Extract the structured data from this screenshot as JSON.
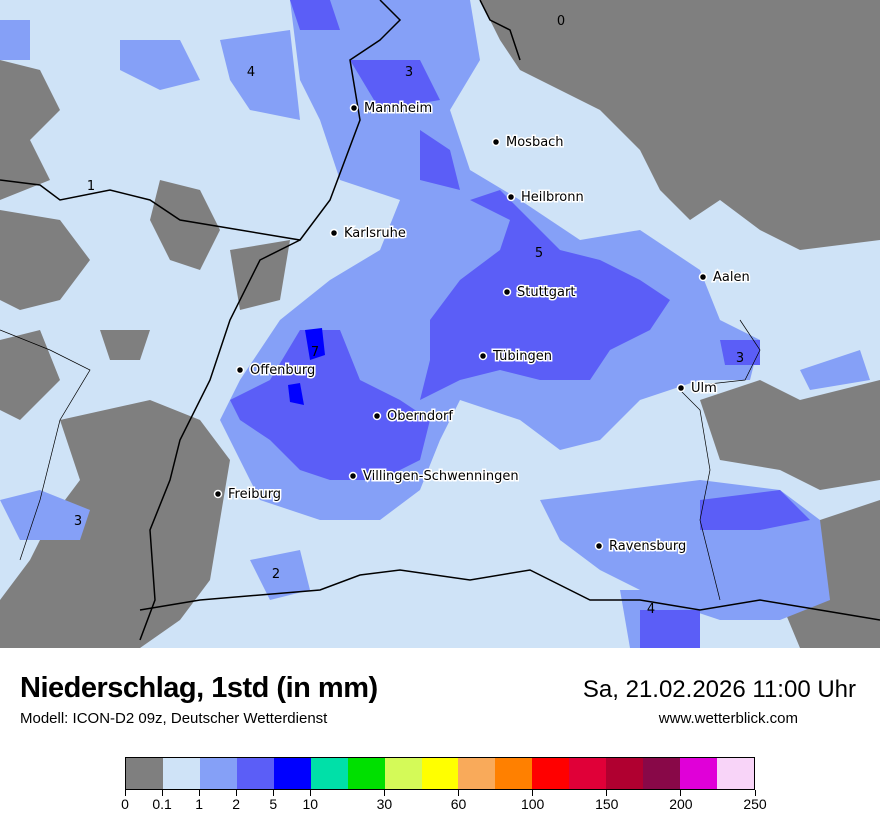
{
  "header": {
    "title": "Niederschlag, 1std (in mm)",
    "subtitle": "Modell: ICON-D2 09z, Deutscher Wetterdienst",
    "datetime": "Sa, 21.02.2026 11:00 Uhr",
    "website": "www.wetterblick.com"
  },
  "map": {
    "colors": {
      "no_precip": "#7f7f7f",
      "lt1": "#cfe3f7",
      "1to2": "#85a0f7",
      "2to5": "#5b5ef7",
      "5to10": "#0000ff"
    },
    "cities": [
      {
        "name": "Mannheim"
      },
      {
        "name": "Mosbach"
      },
      {
        "name": "Heilbronn"
      },
      {
        "name": "Karlsruhe"
      },
      {
        "name": "Aalen"
      },
      {
        "name": "Stuttgart"
      },
      {
        "name": "Tübingen"
      },
      {
        "name": "Ulm"
      },
      {
        "name": "Offenburg"
      },
      {
        "name": "Oberndorf"
      },
      {
        "name": "Villingen-Schwenningen"
      },
      {
        "name": "Freiburg"
      },
      {
        "name": "Ravensburg"
      }
    ],
    "contour_labels": [
      "0",
      "4",
      "3",
      "1",
      "5",
      "7",
      "3",
      "3",
      "2",
      "4"
    ]
  },
  "legend": {
    "colors": [
      "#7f7f7f",
      "#cfe3f7",
      "#85a0f7",
      "#5b5ef7",
      "#0000ff",
      "#00e0a8",
      "#00e000",
      "#d4fa58",
      "#ffff00",
      "#f9aa5a",
      "#ff8000",
      "#ff0000",
      "#e00038",
      "#b00030",
      "#880848",
      "#e000d8",
      "#f8d4f8"
    ],
    "ticks": [
      "0",
      "0.1",
      "1",
      "2",
      "5",
      "10",
      "30",
      "60",
      "100",
      "150",
      "200",
      "250"
    ]
  }
}
